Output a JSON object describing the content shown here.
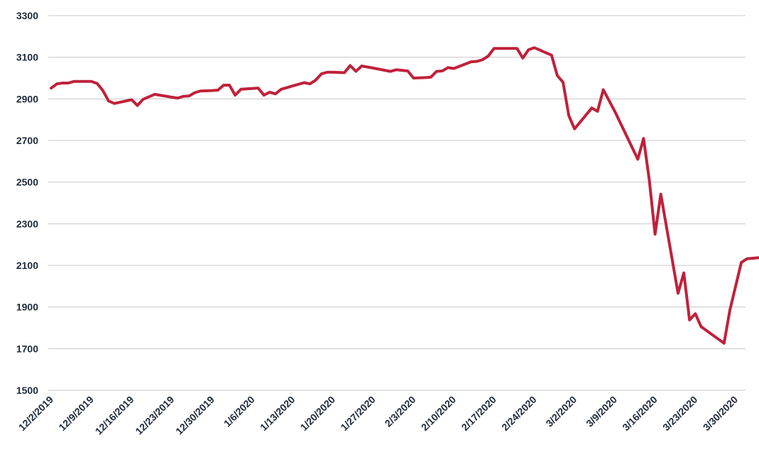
{
  "chart_data": {
    "type": "line",
    "title": "",
    "xlabel": "",
    "ylabel": "",
    "ylim": [
      1500,
      3300
    ],
    "yticks": [
      1500,
      1700,
      1900,
      2100,
      2300,
      2500,
      2700,
      2900,
      3100,
      3300
    ],
    "xticks": [
      "12/2/2019",
      "12/9/2019",
      "12/16/2019",
      "12/23/2019",
      "12/30/2019",
      "1/6/2020",
      "1/13/2020",
      "1/20/2020",
      "1/27/2020",
      "2/3/2020",
      "2/10/2020",
      "2/17/2020",
      "2/24/2020",
      "3/2/2020",
      "3/9/2020",
      "3/16/2020",
      "3/23/2020",
      "3/30/2020"
    ],
    "xlim": [
      "12/2/2019",
      "4/1/2020"
    ],
    "grid": true,
    "color": "#c0213a",
    "series": [
      {
        "points": [
          [
            "12/2/2019",
            2952
          ],
          [
            "12/3/2019",
            2972
          ],
          [
            "12/4/2019",
            2976
          ],
          [
            "12/5/2019",
            2976
          ],
          [
            "12/6/2019",
            2984
          ],
          [
            "12/9/2019",
            2984
          ],
          [
            "12/10/2019",
            2974
          ],
          [
            "12/11/2019",
            2940
          ],
          [
            "12/12/2019",
            2890
          ],
          [
            "12/13/2019",
            2878
          ],
          [
            "12/16/2019",
            2896
          ],
          [
            "12/17/2019",
            2868
          ],
          [
            "12/18/2019",
            2898
          ],
          [
            "12/20/2019",
            2922
          ],
          [
            "12/23/2019",
            2908
          ],
          [
            "12/24/2019",
            2904
          ],
          [
            "12/25/2019",
            2912
          ],
          [
            "12/26/2019",
            2914
          ],
          [
            "12/27/2019",
            2930
          ],
          [
            "12/28/2019",
            2938
          ],
          [
            "12/30/2019",
            2940
          ],
          [
            "12/31/2019",
            2942
          ],
          [
            "1/1/2020",
            2966
          ],
          [
            "1/2/2020",
            2966
          ],
          [
            "1/3/2020",
            2918
          ],
          [
            "1/4/2020",
            2946
          ],
          [
            "1/7/2020",
            2952
          ],
          [
            "1/8/2020",
            2918
          ],
          [
            "1/9/2020",
            2932
          ],
          [
            "1/10/2020",
            2924
          ],
          [
            "1/11/2020",
            2946
          ],
          [
            "1/13/2020",
            2962
          ],
          [
            "1/15/2020",
            2978
          ],
          [
            "1/16/2020",
            2972
          ],
          [
            "1/17/2020",
            2990
          ],
          [
            "1/18/2020",
            3020
          ],
          [
            "1/19/2020",
            3028
          ],
          [
            "1/20/2020",
            3028
          ],
          [
            "1/22/2020",
            3026
          ],
          [
            "1/23/2020",
            3060
          ],
          [
            "1/24/2020",
            3032
          ],
          [
            "1/25/2020",
            3058
          ],
          [
            "1/27/2020",
            3048
          ],
          [
            "1/30/2020",
            3032
          ],
          [
            "1/31/2020",
            3040
          ],
          [
            "2/2/2020",
            3034
          ],
          [
            "2/3/2020",
            3000
          ],
          [
            "2/5/2020",
            3002
          ],
          [
            "2/6/2020",
            3004
          ],
          [
            "2/7/2020",
            3032
          ],
          [
            "2/8/2020",
            3034
          ],
          [
            "2/9/2020",
            3050
          ],
          [
            "2/10/2020",
            3046
          ],
          [
            "2/13/2020",
            3078
          ],
          [
            "2/14/2020",
            3080
          ],
          [
            "2/15/2020",
            3088
          ],
          [
            "2/16/2020",
            3106
          ],
          [
            "2/17/2020",
            3142
          ],
          [
            "2/21/2020",
            3142
          ],
          [
            "2/22/2020",
            3096
          ],
          [
            "2/23/2020",
            3136
          ],
          [
            "2/24/2020",
            3146
          ],
          [
            "2/27/2020",
            3110
          ],
          [
            "2/28/2020",
            3012
          ],
          [
            "2/29/2020",
            2980
          ],
          [
            "3/1/2020",
            2820
          ],
          [
            "3/2/2020",
            2756
          ],
          [
            "3/5/2020",
            2856
          ],
          [
            "3/6/2020",
            2840
          ],
          [
            "3/7/2020",
            2944
          ],
          [
            "3/9/2020",
            2840
          ],
          [
            "3/13/2020",
            2610
          ],
          [
            "3/14/2020",
            2710
          ],
          [
            "3/15/2020",
            2510
          ],
          [
            "3/16/2020",
            2250
          ],
          [
            "3/17/2020",
            2442
          ],
          [
            "3/20/2020",
            1966
          ],
          [
            "3/21/2020",
            2064
          ],
          [
            "3/22/2020",
            1838
          ],
          [
            "3/23/2020",
            1868
          ],
          [
            "3/24/2020",
            1806
          ],
          [
            "3/28/2020",
            1726
          ],
          [
            "3/29/2020",
            1884
          ],
          [
            "3/31/2020",
            2114
          ],
          [
            "4/1/2020",
            2132
          ],
          [
            "4/6/2020",
            2144
          ],
          [
            "4/7/2020",
            2108
          ]
        ]
      }
    ]
  }
}
